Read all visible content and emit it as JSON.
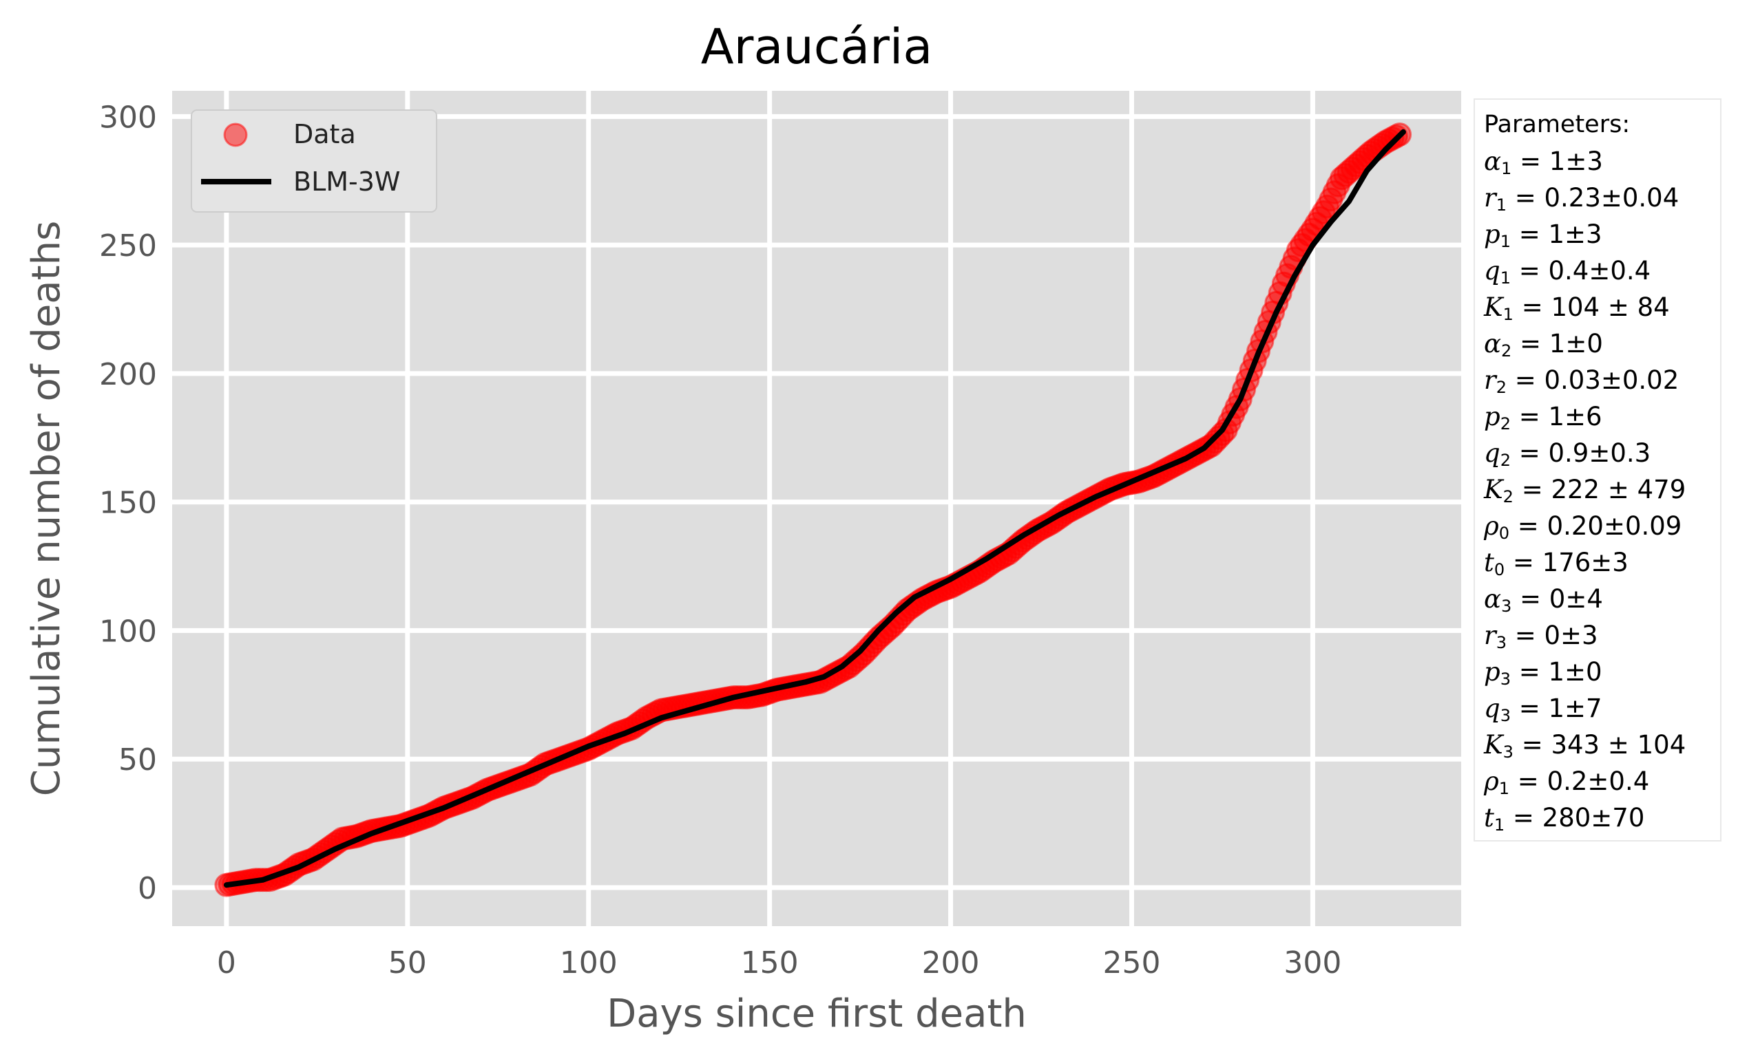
{
  "chart_data": {
    "type": "scatter",
    "title": "Araucária",
    "xlabel": "Days since first death",
    "ylabel": "Cumulative number of deaths",
    "xlim": [
      -15,
      341
    ],
    "ylim": [
      -15,
      310
    ],
    "xticks": [
      0,
      50,
      100,
      150,
      200,
      250,
      300
    ],
    "yticks": [
      0,
      50,
      100,
      150,
      200,
      250,
      300
    ],
    "grid": true,
    "legend_position": "top-left",
    "series": [
      {
        "name": "Data",
        "kind": "scatter",
        "color": "#ff0000",
        "x": [
          0,
          4,
          8,
          12,
          16,
          20,
          24,
          28,
          32,
          36,
          40,
          44,
          48,
          52,
          56,
          60,
          64,
          68,
          72,
          76,
          80,
          84,
          88,
          92,
          96,
          100,
          104,
          108,
          112,
          116,
          120,
          124,
          128,
          132,
          136,
          140,
          144,
          148,
          152,
          156,
          160,
          164,
          168,
          172,
          176,
          180,
          184,
          188,
          192,
          196,
          200,
          204,
          208,
          212,
          216,
          220,
          224,
          228,
          232,
          236,
          240,
          244,
          248,
          252,
          256,
          260,
          264,
          268,
          272,
          276,
          280,
          284,
          288,
          292,
          296,
          300,
          304,
          308,
          312,
          316,
          320,
          324
        ],
        "y": [
          1,
          2,
          3,
          3,
          5,
          9,
          11,
          15,
          19,
          20,
          22,
          23,
          24,
          26,
          28,
          31,
          33,
          35,
          38,
          40,
          42,
          44,
          48,
          50,
          52,
          54,
          57,
          60,
          62,
          66,
          69,
          70,
          71,
          72,
          73,
          74,
          74,
          75,
          77,
          78,
          79,
          80,
          83,
          86,
          91,
          97,
          102,
          108,
          112,
          115,
          117,
          120,
          123,
          127,
          130,
          135,
          139,
          142,
          146,
          149,
          152,
          155,
          157,
          158,
          160,
          163,
          166,
          169,
          172,
          178,
          190,
          205,
          220,
          235,
          248,
          256,
          265,
          276,
          281,
          286,
          290,
          293
        ]
      },
      {
        "name": "BLM-3W",
        "kind": "line",
        "color": "#000000",
        "x": [
          0,
          10,
          20,
          30,
          40,
          50,
          60,
          70,
          80,
          90,
          100,
          110,
          120,
          130,
          140,
          150,
          160,
          165,
          170,
          175,
          180,
          185,
          190,
          200,
          210,
          220,
          230,
          240,
          250,
          260,
          265,
          270,
          275,
          280,
          285,
          290,
          295,
          300,
          305,
          310,
          315,
          320,
          325
        ],
        "y": [
          1,
          3,
          8,
          15,
          21,
          26,
          31,
          37,
          43,
          49,
          55,
          60,
          66,
          70,
          74,
          77,
          80,
          82,
          86,
          92,
          100,
          107,
          113,
          120,
          128,
          137,
          145,
          152,
          158,
          164,
          167,
          171,
          178,
          190,
          208,
          224,
          238,
          250,
          259,
          267,
          279,
          287,
          294
        ]
      }
    ]
  },
  "params": {
    "title": "Parameters:",
    "items": [
      {
        "sym": "α",
        "sub": "1",
        "rest": " = 1±3"
      },
      {
        "sym": "r",
        "sub": "1",
        "rest": " = 0.23±0.04"
      },
      {
        "sym": "p",
        "sub": "1",
        "rest": " = 1±3"
      },
      {
        "sym": "q",
        "sub": "1",
        "rest": " = 0.4±0.4"
      },
      {
        "sym": "K",
        "sub": "1",
        "rest": " = 104 ± 84"
      },
      {
        "sym": "α",
        "sub": "2",
        "rest": " = 1±0"
      },
      {
        "sym": "r",
        "sub": "2",
        "rest": " = 0.03±0.02"
      },
      {
        "sym": "p",
        "sub": "2",
        "rest": " = 1±6"
      },
      {
        "sym": "q",
        "sub": "2",
        "rest": " = 0.9±0.3"
      },
      {
        "sym": "K",
        "sub": "2",
        "rest": " = 222 ± 479"
      },
      {
        "sym": "ρ",
        "sub": "0",
        "rest": " = 0.20±0.09"
      },
      {
        "sym": "t",
        "sub": "0",
        "rest": " = 176±3"
      },
      {
        "sym": "α",
        "sub": "3",
        "rest": " = 0±4"
      },
      {
        "sym": "r",
        "sub": "3",
        "rest": " = 0±3"
      },
      {
        "sym": "p",
        "sub": "3",
        "rest": " = 1±0"
      },
      {
        "sym": "q",
        "sub": "3",
        "rest": " = 1±7"
      },
      {
        "sym": "K",
        "sub": "3",
        "rest": " = 343 ± 104"
      },
      {
        "sym": "ρ",
        "sub": "1",
        "rest": " = 0.2±0.4"
      },
      {
        "sym": "t",
        "sub": "1",
        "rest": " = 280±70"
      }
    ]
  }
}
